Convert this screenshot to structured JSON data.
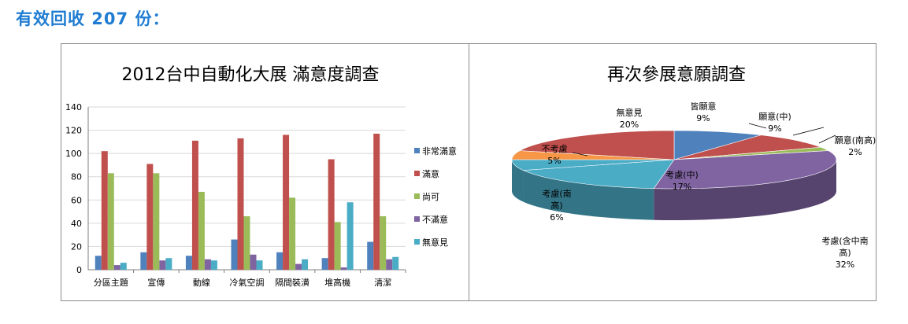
{
  "heading": "有效回收 207 份：",
  "chart_data": [
    {
      "type": "bar",
      "title": "2012台中自動化大展 滿意度調查",
      "categories": [
        "分區主題",
        "宣傳",
        "動線",
        "冷氣空調",
        "隔間裝潢",
        "堆高機",
        "清潔"
      ],
      "ylim": [
        0,
        140
      ],
      "yticks": [
        "0",
        "20",
        "40",
        "60",
        "80",
        "100",
        "120",
        "140"
      ],
      "legend_position": "right",
      "grid": true,
      "series": [
        {
          "name": "非常滿意",
          "color": "#4f81bd",
          "values": [
            12,
            15,
            12,
            26,
            15,
            10,
            24
          ]
        },
        {
          "name": "滿意",
          "color": "#c0504d",
          "values": [
            102,
            91,
            111,
            113,
            116,
            95,
            117
          ]
        },
        {
          "name": "尚可",
          "color": "#9bbb59",
          "values": [
            83,
            83,
            67,
            46,
            62,
            41,
            46
          ]
        },
        {
          "name": "不滿意",
          "color": "#8064a2",
          "values": [
            4,
            8,
            9,
            13,
            5,
            2,
            9
          ]
        },
        {
          "name": "無意見",
          "color": "#4bacc6",
          "values": [
            6,
            10,
            8,
            8,
            9,
            58,
            11
          ]
        }
      ]
    },
    {
      "type": "pie",
      "title": "再次參展意願調查",
      "style": "3d",
      "slices": [
        {
          "label": "皆願意",
          "pct": "9%",
          "value": 9,
          "color": "#4f81bd"
        },
        {
          "label": "願意(中)",
          "pct": "9%",
          "value": 9,
          "color": "#c0504d"
        },
        {
          "label": "願意(南高)",
          "pct": "2%",
          "value": 2,
          "color": "#9bbb59"
        },
        {
          "label": "考慮(含中南高)",
          "pct": "32%",
          "value": 32,
          "color": "#8064a2"
        },
        {
          "label": "考慮(中)",
          "pct": "17%",
          "value": 17,
          "color": "#4bacc6"
        },
        {
          "label": "考慮(南高)",
          "pct": "6%",
          "value": 6,
          "color": "#4bacc6"
        },
        {
          "label": "不考慮",
          "pct": "5%",
          "value": 5,
          "color": "#f79646"
        },
        {
          "label": "無意見",
          "pct": "20%",
          "value": 20,
          "color": "#c0504d"
        }
      ]
    }
  ]
}
